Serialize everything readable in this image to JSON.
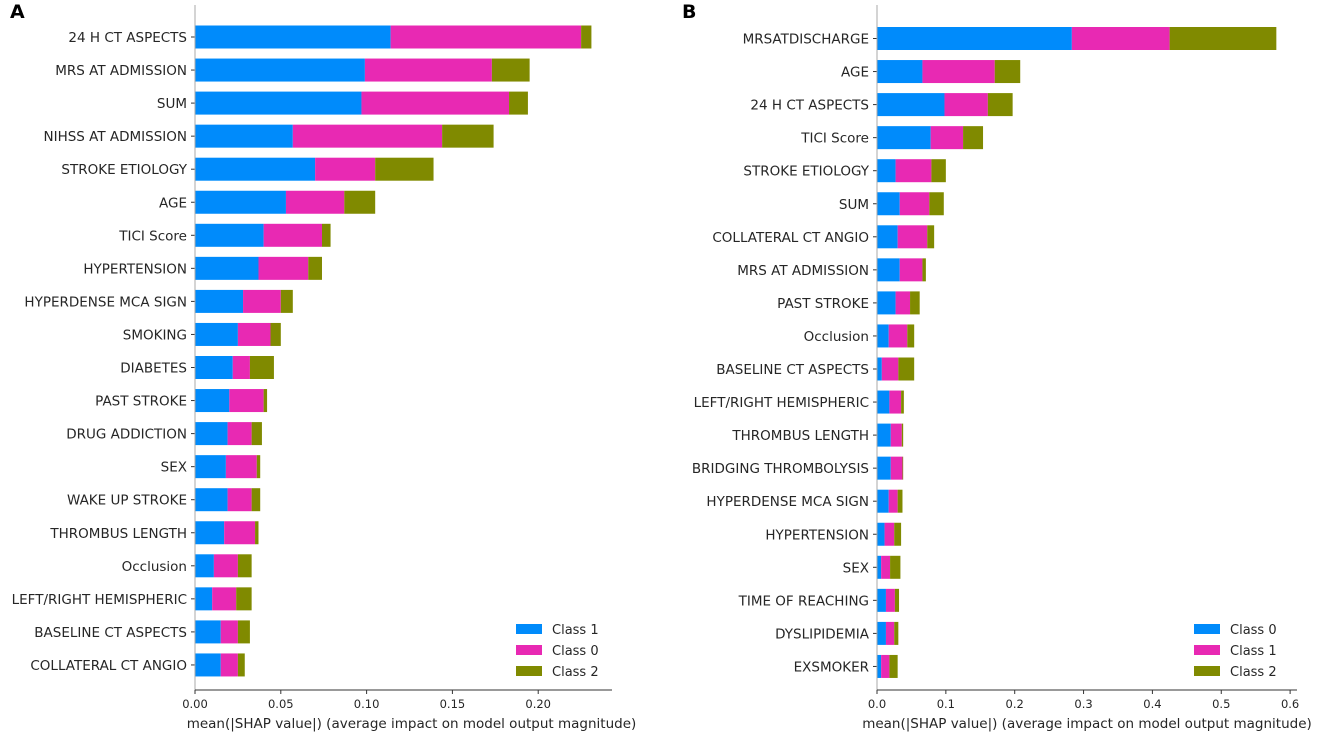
{
  "colors": {
    "class_blue": "#008bfb",
    "class_magenta": "#e829b3",
    "class_olive": "#808a00"
  },
  "chart_data": [
    {
      "type": "bar",
      "orientation": "horizontal-stacked",
      "panel_label": "A",
      "xlabel": "mean(|SHAP value|) (average impact on model output magnitude)",
      "xlim": [
        0,
        0.243
      ],
      "xticks": [
        0,
        0.05,
        0.1,
        0.15,
        0.2
      ],
      "xtick_labels": [
        "0.00",
        "0.05",
        "0.10",
        "0.15",
        "0.20"
      ],
      "legend_position": "bottom-right",
      "categories": [
        "24 H CT ASPECTS",
        "MRS AT ADMISSION",
        "SUM",
        "NIHSS AT ADMISSION",
        "STROKE ETIOLOGY",
        "AGE",
        "TICI Score",
        "HYPERTENSION",
        "HYPERDENSE MCA SIGN",
        "SMOKING",
        "DIABETES",
        "PAST STROKE",
        "DRUG ADDICTION",
        "SEX",
        "WAKE UP STROKE",
        "THROMBUS LENGTH",
        "Occlusion",
        "LEFT/RIGHT HEMISPHERIC",
        "BASELINE CT ASPECTS",
        "COLLATERAL CT ANGIO"
      ],
      "series": [
        {
          "name": "Class 1",
          "color": "#008bfb",
          "values": [
            0.114,
            0.099,
            0.097,
            0.057,
            0.07,
            0.053,
            0.04,
            0.037,
            0.028,
            0.025,
            0.022,
            0.02,
            0.019,
            0.018,
            0.019,
            0.017,
            0.011,
            0.01,
            0.015,
            0.015
          ]
        },
        {
          "name": "Class 0",
          "color": "#e829b3",
          "values": [
            0.111,
            0.074,
            0.086,
            0.087,
            0.035,
            0.034,
            0.034,
            0.029,
            0.022,
            0.019,
            0.01,
            0.02,
            0.014,
            0.018,
            0.014,
            0.018,
            0.014,
            0.014,
            0.01,
            0.01
          ]
        },
        {
          "name": "Class 2",
          "color": "#808a00",
          "values": [
            0.006,
            0.022,
            0.011,
            0.03,
            0.034,
            0.018,
            0.005,
            0.008,
            0.007,
            0.006,
            0.014,
            0.002,
            0.006,
            0.002,
            0.005,
            0.002,
            0.008,
            0.009,
            0.007,
            0.004
          ]
        }
      ]
    },
    {
      "type": "bar",
      "orientation": "horizontal-stacked",
      "panel_label": "B",
      "xlabel": "mean(|SHAP value|) (average impact on model output magnitude)",
      "xlim": [
        0,
        0.61
      ],
      "xticks": [
        0,
        0.1,
        0.2,
        0.3,
        0.4,
        0.5,
        0.6
      ],
      "xtick_labels": [
        "0.0",
        "0.1",
        "0.2",
        "0.3",
        "0.4",
        "0.5",
        "0.6"
      ],
      "legend_position": "bottom-right",
      "categories": [
        "MRSATDISCHARGE",
        "AGE",
        "24 H CT ASPECTS",
        "TICI Score",
        "STROKE ETIOLOGY",
        "SUM",
        "COLLATERAL CT ANGIO",
        "MRS AT ADMISSION",
        "PAST STROKE",
        "Occlusion",
        "BASELINE CT ASPECTS",
        "LEFT/RIGHT HEMISPHERIC",
        "THROMBUS LENGTH",
        "BRIDGING THROMBOLYSIS",
        "HYPERDENSE MCA SIGN",
        "HYPERTENSION",
        "SEX",
        "TIME OF REACHING",
        "DYSLIPIDEMIA",
        "EXSMOKER"
      ],
      "series": [
        {
          "name": "Class 0",
          "color": "#008bfb",
          "values": [
            0.283,
            0.066,
            0.098,
            0.078,
            0.027,
            0.033,
            0.03,
            0.033,
            0.027,
            0.017,
            0.007,
            0.018,
            0.02,
            0.02,
            0.017,
            0.011,
            0.006,
            0.013,
            0.013,
            0.006
          ]
        },
        {
          "name": "Class 1",
          "color": "#e829b3",
          "values": [
            0.142,
            0.105,
            0.063,
            0.047,
            0.052,
            0.043,
            0.043,
            0.033,
            0.021,
            0.027,
            0.024,
            0.017,
            0.016,
            0.017,
            0.013,
            0.014,
            0.013,
            0.013,
            0.012,
            0.012
          ]
        },
        {
          "name": "Class 2",
          "color": "#808a00",
          "values": [
            0.155,
            0.037,
            0.036,
            0.029,
            0.021,
            0.021,
            0.01,
            0.005,
            0.014,
            0.01,
            0.023,
            0.004,
            0.002,
            0.001,
            0.007,
            0.01,
            0.015,
            0.006,
            0.006,
            0.012
          ]
        }
      ]
    }
  ]
}
